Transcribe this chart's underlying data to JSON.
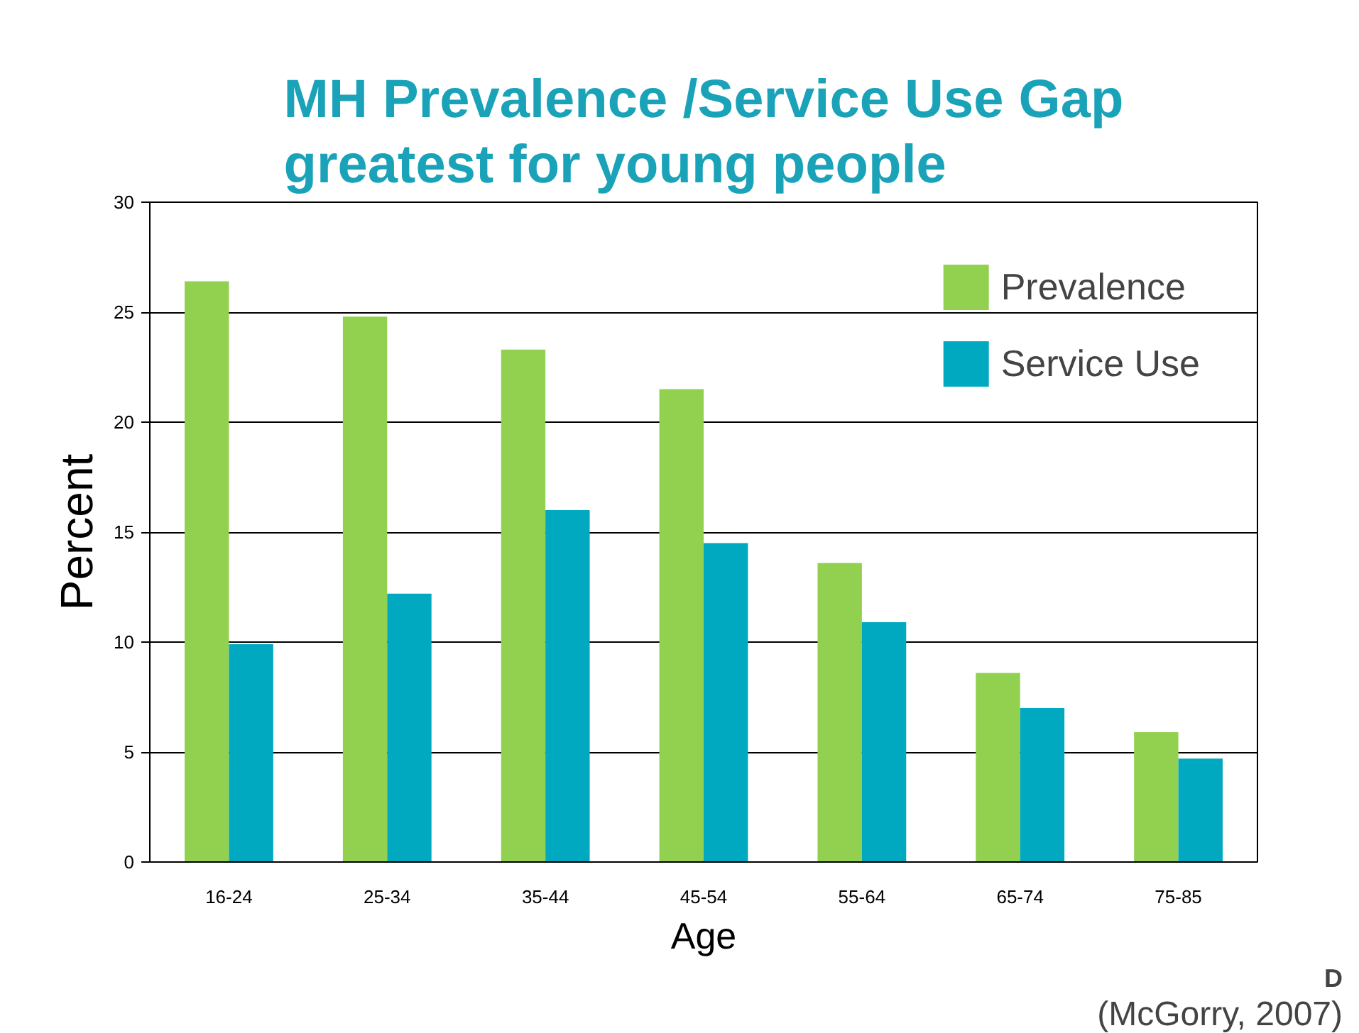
{
  "chart_data": {
    "type": "bar",
    "title": "MH Prevalence /Service Use Gap\ngreatest for young people",
    "xlabel": "Age",
    "ylabel": "Percent",
    "categories": [
      "16-24",
      "25-34",
      "35-44",
      "45-54",
      "55-64",
      "65-74",
      "75-85"
    ],
    "series": [
      {
        "name": "Prevalence",
        "color": "#92d050",
        "values": [
          26.4,
          24.8,
          23.3,
          21.5,
          13.6,
          8.6,
          5.9
        ]
      },
      {
        "name": "Service Use",
        "color": "#00a8c0",
        "values": [
          9.9,
          12.2,
          16.0,
          14.5,
          10.9,
          7.0,
          4.7
        ]
      }
    ],
    "ylim": [
      0,
      30
    ],
    "yticks": [
      0,
      5,
      10,
      15,
      20,
      25,
      30
    ],
    "grid": "y",
    "legend": "top right",
    "annotations": [
      "D",
      "(McGorry, 2007)"
    ]
  }
}
